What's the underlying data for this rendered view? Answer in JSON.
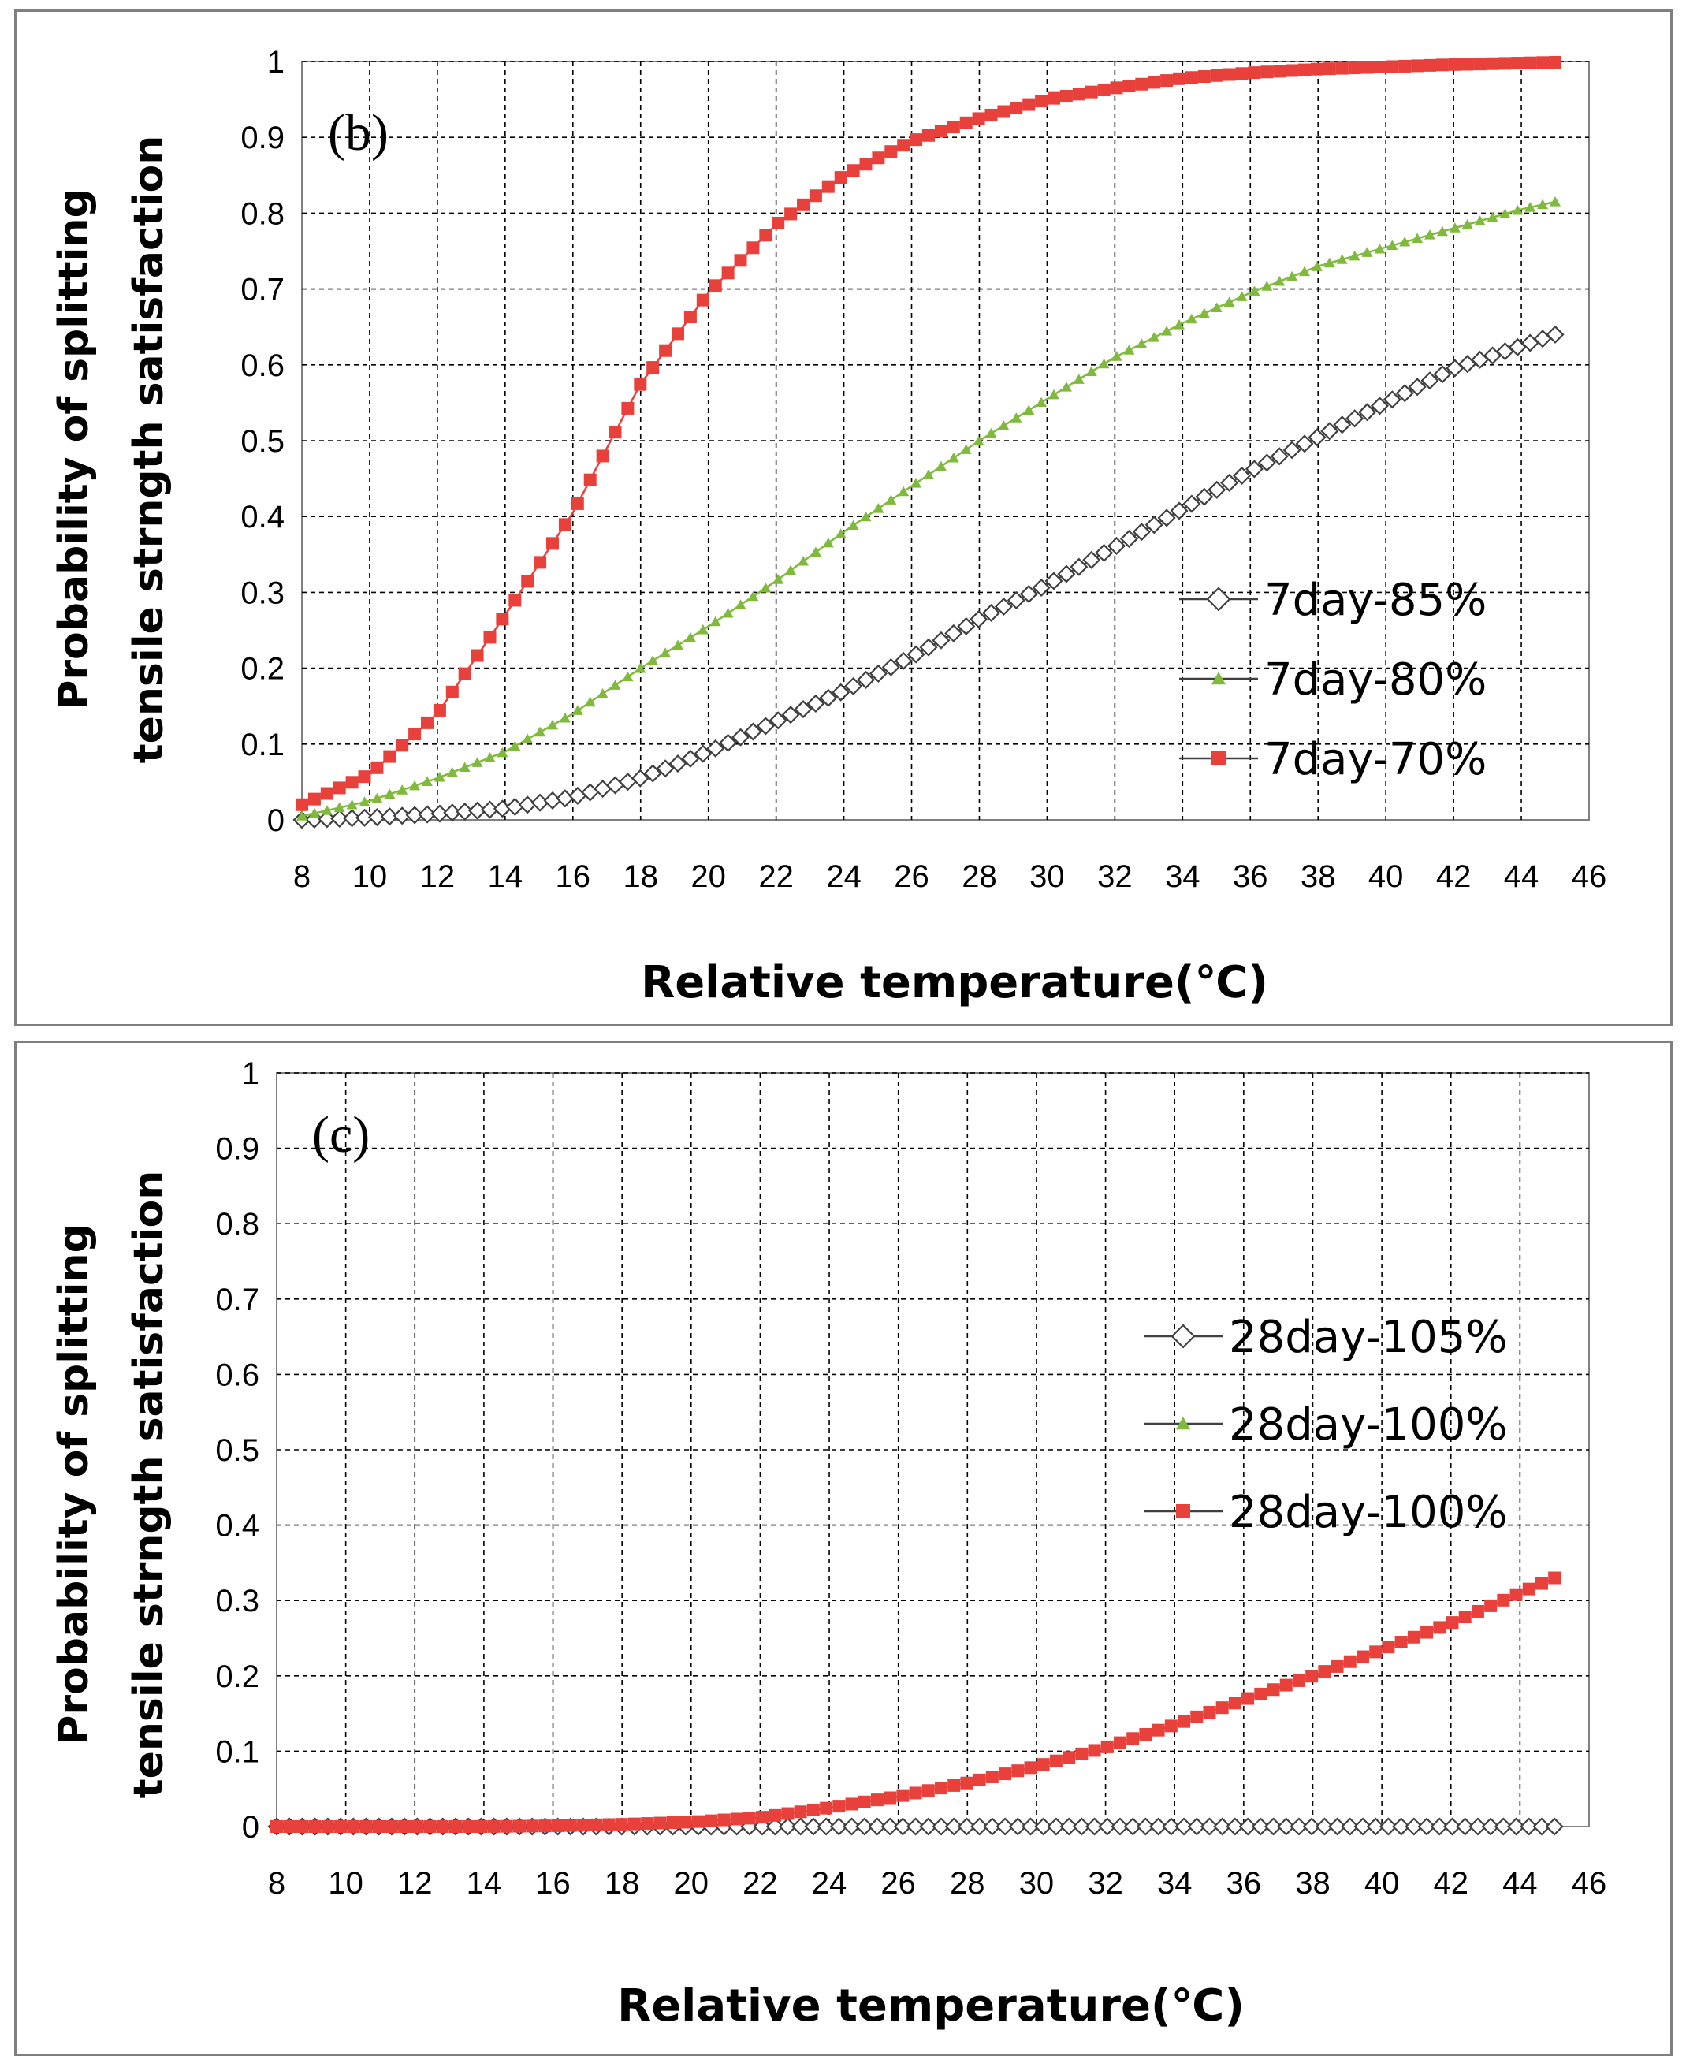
{
  "chart_data": [
    {
      "type": "line",
      "panel_label": "(b)",
      "xlabel": "Relative temperature(℃)",
      "ylabel_line1": "Probability of splitting",
      "ylabel_line2": "tensile strngth satisfaction",
      "xlim": [
        8,
        46
      ],
      "ylim": [
        0,
        1
      ],
      "x_ticks": [
        "8",
        "10",
        "12",
        "14",
        "16",
        "18",
        "20",
        "22",
        "24",
        "26",
        "28",
        "30",
        "32",
        "34",
        "36",
        "38",
        "40",
        "42",
        "44",
        "46"
      ],
      "y_ticks": [
        "0",
        "0.1",
        "0.2",
        "0.3",
        "0.4",
        "0.5",
        "0.6",
        "0.7",
        "0.8",
        "0.9",
        "1"
      ],
      "grid": true,
      "legend_position": "right",
      "x": [
        8,
        10,
        12,
        14,
        16,
        18,
        20,
        22,
        24,
        26,
        28,
        30,
        32,
        34,
        36,
        38,
        40,
        42,
        44,
        45
      ],
      "series": [
        {
          "name": "7day-85%",
          "marker": "diamond",
          "color": "#404040",
          "values": [
            0.0,
            0.003,
            0.008,
            0.015,
            0.03,
            0.055,
            0.09,
            0.13,
            0.17,
            0.215,
            0.265,
            0.31,
            0.36,
            0.41,
            0.46,
            0.505,
            0.55,
            0.595,
            0.625,
            0.64
          ]
        },
        {
          "name": "7day-80%",
          "marker": "triangle",
          "color": "#7fba3c",
          "values": [
            0.005,
            0.025,
            0.055,
            0.09,
            0.14,
            0.2,
            0.255,
            0.315,
            0.38,
            0.44,
            0.5,
            0.555,
            0.61,
            0.655,
            0.695,
            0.73,
            0.755,
            0.78,
            0.805,
            0.815
          ]
        },
        {
          "name": "7day-70%",
          "marker": "square",
          "color": "#e8413c",
          "values": [
            0.02,
            0.06,
            0.14,
            0.27,
            0.405,
            0.575,
            0.695,
            0.785,
            0.85,
            0.895,
            0.925,
            0.95,
            0.965,
            0.978,
            0.985,
            0.99,
            0.993,
            0.996,
            0.998,
            0.999
          ]
        }
      ]
    },
    {
      "type": "line",
      "panel_label": "(c)",
      "xlabel": "Relative temperature(℃)",
      "ylabel_line1": "Probability of splitting",
      "ylabel_line2": "tensile strngth satisfaction",
      "xlim": [
        8,
        46
      ],
      "ylim": [
        0,
        1
      ],
      "x_ticks": [
        "8",
        "10",
        "12",
        "14",
        "16",
        "18",
        "20",
        "22",
        "24",
        "26",
        "28",
        "30",
        "32",
        "34",
        "36",
        "38",
        "40",
        "42",
        "44",
        "46"
      ],
      "y_ticks": [
        "0",
        "0.1",
        "0.2",
        "0.3",
        "0.4",
        "0.5",
        "0.6",
        "0.7",
        "0.8",
        "0.9",
        "1"
      ],
      "grid": true,
      "legend_position": "right",
      "x": [
        8,
        10,
        12,
        14,
        16,
        18,
        20,
        22,
        24,
        26,
        28,
        30,
        32,
        34,
        36,
        38,
        40,
        42,
        44,
        45
      ],
      "series": [
        {
          "name": "28day-105%",
          "marker": "diamond",
          "color": "#404040",
          "values": [
            0,
            0,
            0,
            0,
            0,
            0,
            0,
            0,
            0,
            0,
            0,
            0,
            0,
            0,
            0,
            0,
            0,
            0,
            0,
            0
          ]
        },
        {
          "name": "28day-100%",
          "marker": "triangle",
          "color": "#7fba3c",
          "values": [
            0,
            0,
            0,
            0,
            0.001,
            0.003,
            0.006,
            0.012,
            0.025,
            0.04,
            0.058,
            0.08,
            0.105,
            0.135,
            0.168,
            0.2,
            0.235,
            0.27,
            0.31,
            0.33
          ]
        },
        {
          "name": "28day-100%",
          "marker": "square",
          "color": "#e8413c",
          "values": [
            0,
            0,
            0,
            0,
            0.001,
            0.003,
            0.006,
            0.012,
            0.025,
            0.04,
            0.058,
            0.08,
            0.105,
            0.135,
            0.168,
            0.2,
            0.235,
            0.27,
            0.31,
            0.33
          ]
        }
      ]
    }
  ]
}
